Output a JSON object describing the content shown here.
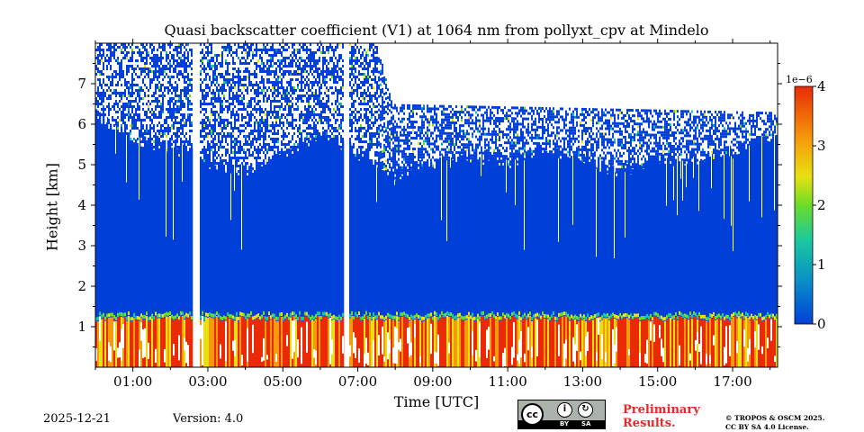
{
  "chart_data": {
    "type": "heatmap",
    "title": "Quasi backscatter coefficient (V1) at 1064 nm from pollyxt_cpv at Mindelo",
    "xlabel": "Time [UTC]",
    "ylabel": "Height [km]",
    "xlim_hours": [
      0,
      18.2
    ],
    "ylim_km": [
      0,
      8
    ],
    "x_tick_hours": [
      1,
      3,
      5,
      7,
      9,
      11,
      13,
      15,
      17
    ],
    "x_tick_labels": [
      "01:00",
      "03:00",
      "05:00",
      "07:00",
      "09:00",
      "11:00",
      "13:00",
      "15:00",
      "17:00"
    ],
    "y_ticks": [
      1,
      2,
      3,
      4,
      5,
      6,
      7
    ],
    "y_tick_labels": [
      "1",
      "2",
      "3",
      "4",
      "5",
      "6",
      "7"
    ],
    "colorbar": {
      "range": [
        0,
        4
      ],
      "ticks": [
        0,
        1,
        2,
        3,
        4
      ],
      "tick_labels": [
        "0",
        "1",
        "2",
        "3",
        "4"
      ],
      "exponent_label": "1e−6",
      "colors": [
        "#0040d8",
        "#0a8ec8",
        "#19c8a0",
        "#6cdc28",
        "#e8e010",
        "#f59a0a",
        "#ea2a05"
      ]
    },
    "background_color": "#0040d8",
    "data_gaps_hours": [
      [
        2.58,
        2.74
      ],
      [
        6.58,
        6.76
      ]
    ],
    "aerosol_layer": {
      "base_km_approx": 1.2,
      "top_km_by_time": [
        {
          "t": 0.0,
          "top_km": 6.2
        },
        {
          "t": 1.0,
          "top_km": 5.6
        },
        {
          "t": 2.0,
          "top_km": 5.5
        },
        {
          "t": 3.0,
          "top_km": 5.0
        },
        {
          "t": 4.0,
          "top_km": 4.9
        },
        {
          "t": 5.0,
          "top_km": 5.3
        },
        {
          "t": 6.0,
          "top_km": 5.7
        },
        {
          "t": 7.0,
          "top_km": 5.3
        },
        {
          "t": 8.0,
          "top_km": 4.8
        },
        {
          "t": 9.0,
          "top_km": 5.0
        },
        {
          "t": 10.0,
          "top_km": 5.2
        },
        {
          "t": 11.0,
          "top_km": 5.1
        },
        {
          "t": 12.0,
          "top_km": 5.4
        },
        {
          "t": 13.0,
          "top_km": 5.2
        },
        {
          "t": 14.0,
          "top_km": 4.8
        },
        {
          "t": 15.0,
          "top_km": 5.2
        },
        {
          "t": 16.0,
          "top_km": 5.1
        },
        {
          "t": 17.0,
          "top_km": 5.3
        },
        {
          "t": 18.2,
          "top_km": 5.8
        }
      ]
    },
    "upper_noise_top_km_by_time": [
      {
        "t": 0.0,
        "top_km": 8.0
      },
      {
        "t": 7.5,
        "top_km": 8.0
      },
      {
        "t": 7.9,
        "top_km": 6.5
      },
      {
        "t": 18.2,
        "top_km": 6.3
      }
    ],
    "boundary_layer_color_levels_1e6": [
      3.5,
      3.0,
      2.0
    ]
  },
  "footer": {
    "date": "2025-12-21",
    "version": "Version: 4.0",
    "license_badge": {
      "cc": "cc",
      "by": "BY",
      "sa": "SA"
    },
    "preliminary": [
      "Preliminary",
      "Results."
    ],
    "copyright": [
      "© TROPOS & OSCM 2025.",
      "CC BY SA 4.0 License."
    ]
  }
}
